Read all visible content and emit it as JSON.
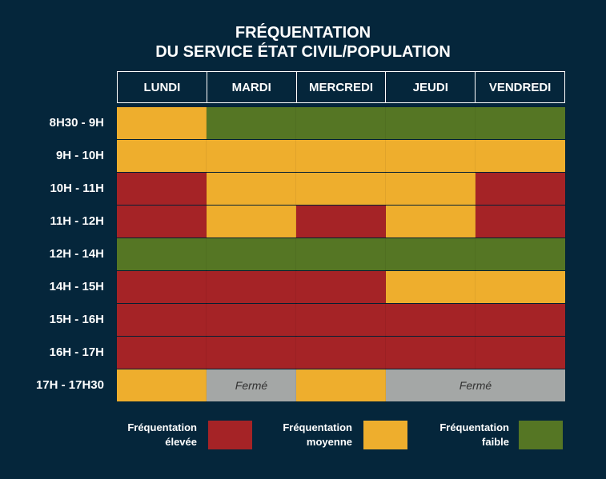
{
  "title_line1": "FRÉQUENTATION",
  "title_line2": "DU SERVICE ÉTAT CIVIL/POPULATION",
  "colors": {
    "high": "#a52326",
    "medium": "#eeae2d",
    "low": "#557624",
    "closed": "#a4a7a6"
  },
  "chart_data": {
    "type": "heatmap",
    "days": [
      "LUNDI",
      "MARDI",
      "MERCREDI",
      "JEUDI",
      "VENDREDI"
    ],
    "slots": [
      "8H30 - 9H",
      "9H - 10H",
      "10H - 11H",
      "11H - 12H",
      "12H - 14H",
      "14H - 15H",
      "15H - 16H",
      "16H - 17H",
      "17H - 17H30"
    ],
    "levels": [
      [
        "medium",
        "low",
        "low",
        "low",
        "low"
      ],
      [
        "medium",
        "medium",
        "medium",
        "medium",
        "medium"
      ],
      [
        "high",
        "medium",
        "medium",
        "medium",
        "high"
      ],
      [
        "high",
        "medium",
        "high",
        "medium",
        "high"
      ],
      [
        "low",
        "low",
        "low",
        "low",
        "low"
      ],
      [
        "high",
        "high",
        "high",
        "medium",
        "medium"
      ],
      [
        "high",
        "high",
        "high",
        "high",
        "high"
      ],
      [
        "high",
        "high",
        "high",
        "high",
        "high"
      ],
      [
        "medium",
        "closed",
        "medium",
        "closed",
        "closed"
      ]
    ],
    "closed_label": "Fermé",
    "legend": [
      {
        "key": "high",
        "line1": "Fréquentation",
        "line2": "élevée"
      },
      {
        "key": "medium",
        "line1": "Fréquentation",
        "line2": "moyenne"
      },
      {
        "key": "low",
        "line1": "Fréquentation",
        "line2": "faible"
      }
    ]
  }
}
